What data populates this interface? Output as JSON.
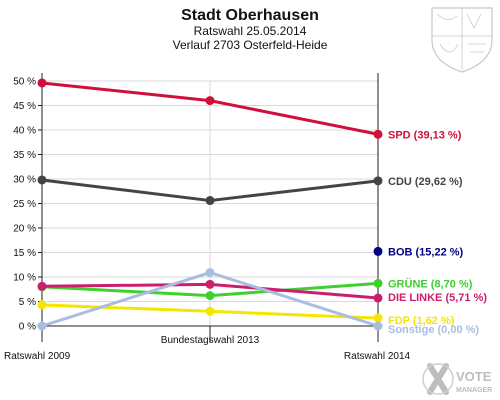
{
  "chart_data": {
    "type": "line",
    "title": "Stadt Oberhausen",
    "subtitle_lines": [
      "Ratswahl 25.05.2014",
      "Verlauf 2703 Osterfeld-Heide"
    ],
    "categories": [
      "Ratswahl 2009",
      "Bundestagswahl 2013",
      "Ratswahl 2014"
    ],
    "ylim": [
      0,
      50
    ],
    "ytick_labels": [
      "0 %",
      "5 %",
      "10 %",
      "15 %",
      "20 %",
      "25 %",
      "30 %",
      "35 %",
      "40 %",
      "45 %",
      "50 %"
    ],
    "grid": true,
    "series": [
      {
        "name": "SPD",
        "label": "SPD (39,13 %)",
        "color": "#d0103a",
        "values": [
          49.6,
          46.0,
          39.13
        ]
      },
      {
        "name": "CDU",
        "label": "CDU (29,62 %)",
        "color": "#444444",
        "values": [
          29.8,
          25.6,
          29.62
        ]
      },
      {
        "name": "BOB",
        "label": "BOB (15,22 %)",
        "color": "#000080",
        "values": [
          null,
          null,
          15.22
        ]
      },
      {
        "name": "GRÜNE",
        "label": "GRÜNE (8,70 %)",
        "color": "#3fcf2f",
        "values": [
          8.0,
          6.2,
          8.7
        ]
      },
      {
        "name": "DIE LINKE",
        "label": "DIE LINKE (5,71 %)",
        "color": "#cc1e6e",
        "values": [
          8.1,
          8.5,
          5.71
        ]
      },
      {
        "name": "FDP",
        "label": "FDP (1,62 %)",
        "color": "#f5e600",
        "values": [
          4.3,
          3.0,
          1.62
        ]
      },
      {
        "name": "Sonstige",
        "label": "Sonstige (0,00 %)",
        "color": "#a9bde3",
        "values": [
          0.0,
          10.9,
          0.0
        ]
      }
    ]
  },
  "watermark": {
    "line1": "VOTE",
    "line2": "MANAGER"
  },
  "logo": {
    "icon": "nrw-coat-of-arms-icon"
  }
}
